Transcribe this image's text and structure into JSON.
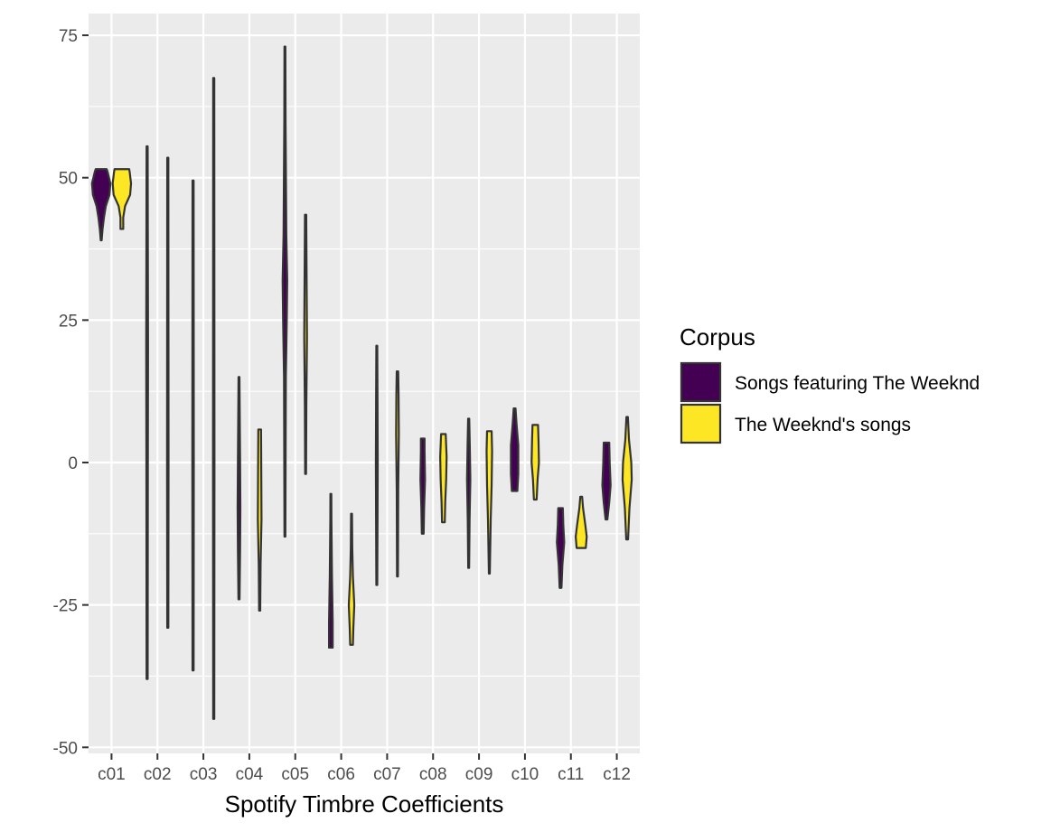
{
  "chart_data": {
    "type": "violin",
    "xlabel": "Spotify Timbre Coefficients",
    "ylabel": "",
    "ylim": [
      -52,
      77
    ],
    "y_ticks": [
      75,
      50,
      25,
      0,
      -25,
      -50
    ],
    "y_tick_labels": [
      "75",
      "50",
      "25",
      "0",
      "-25",
      "-50"
    ],
    "categories": [
      "c01",
      "c02",
      "c03",
      "c04",
      "c05",
      "c06",
      "c07",
      "c08",
      "c09",
      "c10",
      "c11",
      "c12"
    ],
    "legend": {
      "title": "Corpus",
      "position": "right"
    },
    "grid": true,
    "series": [
      {
        "name": "Songs featuring The Weeknd",
        "color": "#440154",
        "violins": [
          {
            "min": 39,
            "max": 51.5,
            "profile": [
              [
                39,
                0.05
              ],
              [
                41,
                0.15
              ],
              [
                43,
                0.3
              ],
              [
                45,
                0.5
              ],
              [
                47,
                0.9
              ],
              [
                49,
                1.0
              ],
              [
                51,
                0.7
              ],
              [
                51.5,
                0.6
              ]
            ]
          },
          {
            "min": -38,
            "max": 55.5,
            "profile": [
              [
                -38,
                0.06
              ],
              [
                0,
                0.08
              ],
              [
                20,
                0.1
              ],
              [
                55.5,
                0.06
              ]
            ]
          },
          {
            "min": -36.5,
            "max": 49.5,
            "profile": [
              [
                -36.5,
                0.06
              ],
              [
                0,
                0.08
              ],
              [
                49.5,
                0.06
              ]
            ]
          },
          {
            "min": -24,
            "max": 15,
            "profile": [
              [
                -24,
                0.06
              ],
              [
                -15,
                0.12
              ],
              [
                -8,
                0.15
              ],
              [
                0,
                0.12
              ],
              [
                15,
                0.05
              ]
            ]
          },
          {
            "min": -13,
            "max": 73,
            "profile": [
              [
                -13,
                0.05
              ],
              [
                15,
                0.1
              ],
              [
                25,
                0.2
              ],
              [
                32,
                0.25
              ],
              [
                40,
                0.15
              ],
              [
                60,
                0.07
              ],
              [
                73,
                0.05
              ]
            ]
          },
          {
            "min": -32.5,
            "max": -5.5,
            "profile": [
              [
                -32.5,
                0.2
              ],
              [
                -28,
                0.2
              ],
              [
                -20,
                0.12
              ],
              [
                -10,
                0.06
              ],
              [
                -5.5,
                0.05
              ]
            ]
          },
          {
            "min": -21.5,
            "max": 20.5,
            "profile": [
              [
                -21.5,
                0.05
              ],
              [
                -10,
                0.08
              ],
              [
                0,
                0.1
              ],
              [
                10,
                0.08
              ],
              [
                20.5,
                0.05
              ]
            ]
          },
          {
            "min": -12.5,
            "max": 4.2,
            "profile": [
              [
                -12.5,
                0.1
              ],
              [
                -8,
                0.15
              ],
              [
                -3,
                0.25
              ],
              [
                2,
                0.2
              ],
              [
                4.2,
                0.2
              ]
            ]
          },
          {
            "min": -18.5,
            "max": 7.7,
            "profile": [
              [
                -18.5,
                0.05
              ],
              [
                -10,
                0.1
              ],
              [
                -3,
                0.18
              ],
              [
                3,
                0.12
              ],
              [
                7.7,
                0.06
              ]
            ]
          },
          {
            "min": -5,
            "max": 9.5,
            "profile": [
              [
                -5,
                0.3
              ],
              [
                -2,
                0.4
              ],
              [
                3,
                0.4
              ],
              [
                7,
                0.2
              ],
              [
                9.5,
                0.1
              ]
            ]
          },
          {
            "min": -22,
            "max": -8,
            "profile": [
              [
                -22,
                0.1
              ],
              [
                -18,
                0.2
              ],
              [
                -14,
                0.4
              ],
              [
                -11,
                0.3
              ],
              [
                -8,
                0.25
              ]
            ]
          },
          {
            "min": -10,
            "max": 3.5,
            "profile": [
              [
                -10,
                0.1
              ],
              [
                -7,
                0.3
              ],
              [
                -4,
                0.45
              ],
              [
                0,
                0.35
              ],
              [
                3.5,
                0.3
              ]
            ]
          }
        ]
      },
      {
        "name": "The Weeknd's songs",
        "color": "#fde725",
        "violins": [
          {
            "min": 41,
            "max": 51.5,
            "profile": [
              [
                41,
                0.15
              ],
              [
                43,
                0.15
              ],
              [
                45,
                0.35
              ],
              [
                47,
                0.9
              ],
              [
                49,
                1.0
              ],
              [
                51,
                0.85
              ],
              [
                51.5,
                0.8
              ]
            ]
          },
          {
            "min": -29,
            "max": 53.5,
            "profile": [
              [
                -29,
                0.06
              ],
              [
                0,
                0.08
              ],
              [
                53.5,
                0.06
              ]
            ]
          },
          {
            "min": -45,
            "max": 67.5,
            "profile": [
              [
                -45,
                0.06
              ],
              [
                0,
                0.08
              ],
              [
                67.5,
                0.06
              ]
            ]
          },
          {
            "min": -26,
            "max": 5.8,
            "profile": [
              [
                -26,
                0.06
              ],
              [
                -18,
                0.1
              ],
              [
                -10,
                0.2
              ],
              [
                -3,
                0.18
              ],
              [
                5.8,
                0.15
              ]
            ]
          },
          {
            "min": -2,
            "max": 43.5,
            "profile": [
              [
                -2,
                0.05
              ],
              [
                10,
                0.08
              ],
              [
                22,
                0.15
              ],
              [
                35,
                0.1
              ],
              [
                43.5,
                0.07
              ]
            ]
          },
          {
            "min": -32,
            "max": -9,
            "profile": [
              [
                -32,
                0.15
              ],
              [
                -29,
                0.2
              ],
              [
                -25,
                0.3
              ],
              [
                -20,
                0.15
              ],
              [
                -15,
                0.08
              ],
              [
                -9,
                0.05
              ]
            ]
          },
          {
            "min": -20,
            "max": 16,
            "profile": [
              [
                -20,
                0.05
              ],
              [
                -5,
                0.08
              ],
              [
                5,
                0.15
              ],
              [
                12,
                0.12
              ],
              [
                16,
                0.08
              ]
            ]
          },
          {
            "min": -10.5,
            "max": 5,
            "profile": [
              [
                -10.5,
                0.15
              ],
              [
                -7,
                0.2
              ],
              [
                -3,
                0.3
              ],
              [
                1,
                0.35
              ],
              [
                5,
                0.25
              ]
            ]
          },
          {
            "min": -19.5,
            "max": 5.5,
            "profile": [
              [
                -19.5,
                0.05
              ],
              [
                -10,
                0.15
              ],
              [
                -4,
                0.25
              ],
              [
                2,
                0.3
              ],
              [
                5.5,
                0.25
              ]
            ]
          },
          {
            "min": -6.5,
            "max": 6.6,
            "profile": [
              [
                -6.5,
                0.15
              ],
              [
                -3,
                0.25
              ],
              [
                0,
                0.4
              ],
              [
                4,
                0.35
              ],
              [
                6.6,
                0.3
              ]
            ]
          },
          {
            "min": -15,
            "max": -6,
            "profile": [
              [
                -15,
                0.5
              ],
              [
                -13,
                0.6
              ],
              [
                -11,
                0.45
              ],
              [
                -8,
                0.2
              ],
              [
                -6,
                0.1
              ]
            ]
          },
          {
            "min": -13.5,
            "max": 8,
            "profile": [
              [
                -13.5,
                0.1
              ],
              [
                -8,
                0.25
              ],
              [
                -3,
                0.5
              ],
              [
                0,
                0.45
              ],
              [
                4,
                0.2
              ],
              [
                8,
                0.08
              ]
            ]
          }
        ]
      }
    ]
  }
}
